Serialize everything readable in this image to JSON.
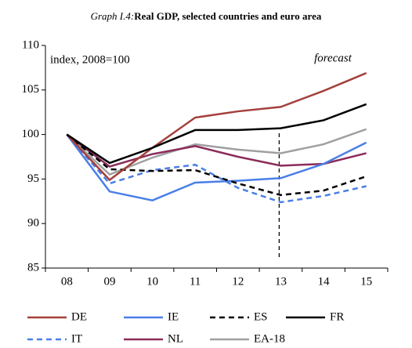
{
  "chart_data": {
    "type": "line",
    "graph_label": "Graph I.4:",
    "title": "Real GDP, selected countries and euro area",
    "annotations": [
      "index, 2008=100",
      "forecast"
    ],
    "forecast_start": "13",
    "categories": [
      "08",
      "09",
      "10",
      "11",
      "12",
      "13",
      "14",
      "15"
    ],
    "ylim": [
      85,
      110
    ],
    "yticks": [
      85,
      90,
      95,
      100,
      105,
      110
    ],
    "grid": false,
    "series": [
      {
        "name": "DE",
        "color": "#a4403c",
        "dashed": false,
        "values": [
          100,
          94.9,
          98.5,
          101.9,
          102.6,
          103.1,
          104.9,
          106.9
        ]
      },
      {
        "name": "IE",
        "color": "#4a7fe8",
        "dashed": false,
        "values": [
          100,
          93.6,
          92.6,
          94.6,
          94.8,
          95.1,
          96.7,
          99.1
        ]
      },
      {
        "name": "ES",
        "color": "#000000",
        "dashed": true,
        "values": [
          100,
          96.1,
          95.9,
          96.0,
          94.5,
          93.2,
          93.7,
          95.3
        ]
      },
      {
        "name": "FR",
        "color": "#000000",
        "dashed": false,
        "values": [
          100,
          96.8,
          98.5,
          100.5,
          100.5,
          100.7,
          101.6,
          103.4
        ]
      },
      {
        "name": "IT",
        "color": "#4a7fe8",
        "dashed": true,
        "values": [
          100,
          94.5,
          96.0,
          96.6,
          94.0,
          92.4,
          93.1,
          94.2
        ]
      },
      {
        "name": "NL",
        "color": "#8b2c5a",
        "dashed": false,
        "values": [
          100,
          96.4,
          97.8,
          98.7,
          97.5,
          96.5,
          96.7,
          97.9
        ]
      },
      {
        "name": "EA-18",
        "color": "#a0a0a0",
        "dashed": false,
        "values": [
          100,
          95.5,
          97.4,
          98.9,
          98.3,
          97.9,
          98.9,
          100.6
        ]
      }
    ]
  }
}
